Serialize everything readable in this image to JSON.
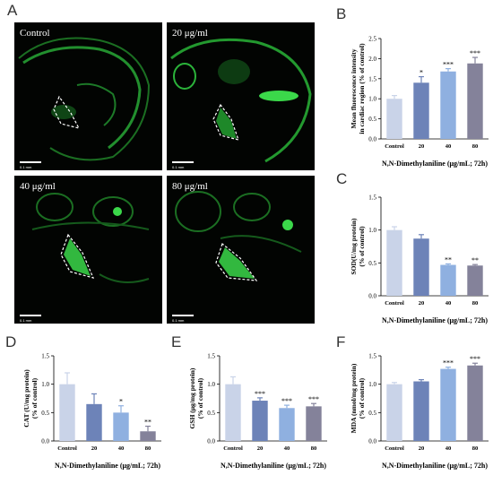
{
  "panels": {
    "A": "A",
    "B": "B",
    "C": "C",
    "D": "D",
    "E": "E",
    "F": "F"
  },
  "microscopy": [
    {
      "label": "Control",
      "scale": "0.1 mm"
    },
    {
      "label": "20 μg/ml",
      "scale": "0.1 mm"
    },
    {
      "label": "40 μg/ml",
      "scale": "0.1 mm"
    },
    {
      "label": "80 μg/ml",
      "scale": "0.1 mm"
    }
  ],
  "colors": {
    "Control": "#c9d3e8",
    "20": "#6d83b8",
    "40": "#8fb0e0",
    "80": "#84829a",
    "fluorescence": "#3bd84a"
  },
  "chart_data": [
    {
      "panel": "B",
      "type": "bar",
      "categories": [
        "Control",
        "20",
        "40",
        "80"
      ],
      "values": [
        1.0,
        1.4,
        1.68,
        1.88
      ],
      "errors": [
        0.08,
        0.15,
        0.07,
        0.15
      ],
      "significance": [
        "",
        "*",
        "***",
        "***"
      ],
      "ylabel_lines": [
        "Mean fluorescence intensity",
        "in cardiac region (% of control)"
      ],
      "xlabel": "N,N-Dimethylaniline (μg/mL; 72h)",
      "ylim": [
        0,
        2.5
      ],
      "yticks": [
        "0.0",
        "0.5",
        "1.0",
        "1.5",
        "2.0",
        "2.5"
      ]
    },
    {
      "panel": "C",
      "type": "bar",
      "categories": [
        "Control",
        "20",
        "40",
        "80"
      ],
      "values": [
        1.0,
        0.87,
        0.47,
        0.46
      ],
      "errors": [
        0.05,
        0.06,
        0.015,
        0.015
      ],
      "significance": [
        "",
        "",
        "**",
        "**"
      ],
      "ylabel_lines": [
        "SOD(U/mg protein)",
        "(% of control)"
      ],
      "xlabel": "N,N-Dimethylaniline (μg/mL; 72h)",
      "ylim": [
        0,
        1.5
      ],
      "yticks": [
        "0.0",
        "0.5",
        "1.0",
        "1.5"
      ]
    },
    {
      "panel": "D",
      "type": "bar",
      "categories": [
        "Control",
        "20",
        "40",
        "80"
      ],
      "values": [
        1.0,
        0.65,
        0.5,
        0.17
      ],
      "errors": [
        0.2,
        0.18,
        0.12,
        0.09
      ],
      "significance": [
        "",
        "",
        "*",
        "**"
      ],
      "ylabel_lines": [
        "CAT (U/mg protein)",
        "(% of control)"
      ],
      "xlabel": "N,N-Dimethylaniline (μg/mL; 72h)",
      "ylim": [
        0,
        1.5
      ],
      "yticks": [
        "0.0",
        "0.5",
        "1.0",
        "1.5"
      ]
    },
    {
      "panel": "E",
      "type": "bar",
      "categories": [
        "Control",
        "20",
        "40",
        "80"
      ],
      "values": [
        1.0,
        0.71,
        0.58,
        0.61
      ],
      "errors": [
        0.13,
        0.05,
        0.05,
        0.05
      ],
      "significance": [
        "",
        "***",
        "***",
        "***"
      ],
      "ylabel_lines": [
        "GSH (μg/mg protein)",
        "(% of control)"
      ],
      "xlabel": "N,N-Dimethylaniline (μg/mL; 72h)",
      "ylim": [
        0,
        1.5
      ],
      "yticks": [
        "0.0",
        "0.5",
        "1.0",
        "1.5"
      ]
    },
    {
      "panel": "F",
      "type": "bar",
      "categories": [
        "Control",
        "20",
        "40",
        "80"
      ],
      "values": [
        1.0,
        1.05,
        1.27,
        1.33
      ],
      "errors": [
        0.03,
        0.03,
        0.03,
        0.04
      ],
      "significance": [
        "",
        "",
        "***",
        "***"
      ],
      "ylabel_lines": [
        "MDA (nmol/mg protein)",
        "(% of control)"
      ],
      "xlabel": "N,N-Dimethylaniline (μg/mL; 72h)",
      "ylim": [
        0,
        1.5
      ],
      "yticks": [
        "0.0",
        "0.5",
        "1.0",
        "1.5"
      ]
    }
  ]
}
